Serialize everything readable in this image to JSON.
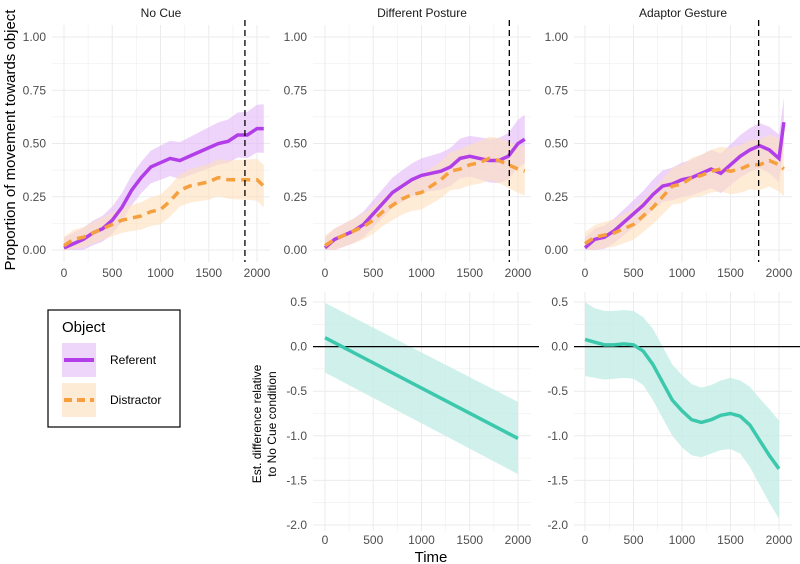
{
  "chart_data": [
    {
      "type": "line",
      "title": "No Cue",
      "xlim": [
        0,
        2080
      ],
      "ylim": [
        0,
        1
      ],
      "yticks": [
        "0.00",
        "0.25",
        "0.50",
        "0.75",
        "1.00"
      ],
      "xticks": [
        "0",
        "500",
        "1000",
        "1500",
        "2000"
      ],
      "vline": 1875,
      "x": [
        0,
        100,
        200,
        300,
        400,
        500,
        600,
        700,
        800,
        900,
        1000,
        1100,
        1200,
        1300,
        1400,
        1500,
        1600,
        1700,
        1800,
        1900,
        2000,
        2070
      ],
      "series": [
        {
          "name": "Referent",
          "values": [
            0.01,
            0.03,
            0.05,
            0.08,
            0.1,
            0.14,
            0.2,
            0.28,
            0.34,
            0.39,
            0.41,
            0.43,
            0.42,
            0.44,
            0.46,
            0.48,
            0.5,
            0.51,
            0.54,
            0.54,
            0.57,
            0.57
          ],
          "ci": 0.08
        },
        {
          "name": "Distractor",
          "values": [
            0.02,
            0.05,
            0.06,
            0.08,
            0.1,
            0.12,
            0.14,
            0.15,
            0.16,
            0.18,
            0.19,
            0.23,
            0.28,
            0.3,
            0.31,
            0.32,
            0.34,
            0.33,
            0.33,
            0.33,
            0.33,
            0.3
          ],
          "ci": 0.07
        }
      ]
    },
    {
      "type": "line",
      "title": "Different Posture",
      "xlim": [
        0,
        2080
      ],
      "ylim": [
        0,
        1
      ],
      "yticks": [
        "0.00",
        "0.25",
        "0.50",
        "0.75",
        "1.00"
      ],
      "xticks": [
        "0",
        "500",
        "1000",
        "1500",
        "2000"
      ],
      "vline": 1910,
      "x": [
        0,
        100,
        200,
        300,
        400,
        500,
        600,
        700,
        800,
        900,
        1000,
        1100,
        1200,
        1300,
        1400,
        1500,
        1600,
        1700,
        1800,
        1900,
        2000,
        2070
      ],
      "series": [
        {
          "name": "Referent",
          "values": [
            0.01,
            0.05,
            0.07,
            0.09,
            0.12,
            0.17,
            0.22,
            0.27,
            0.3,
            0.33,
            0.35,
            0.36,
            0.37,
            0.39,
            0.43,
            0.44,
            0.43,
            0.42,
            0.42,
            0.44,
            0.5,
            0.52
          ],
          "ci": 0.08
        },
        {
          "name": "Distractor",
          "values": [
            0.02,
            0.05,
            0.07,
            0.09,
            0.11,
            0.14,
            0.18,
            0.21,
            0.24,
            0.26,
            0.27,
            0.3,
            0.33,
            0.37,
            0.38,
            0.4,
            0.41,
            0.43,
            0.42,
            0.4,
            0.38,
            0.37
          ],
          "ci": 0.08
        }
      ]
    },
    {
      "type": "line",
      "title": "Adaptor Gesture",
      "xlim": [
        0,
        2080
      ],
      "ylim": [
        0,
        1
      ],
      "yticks": [
        "0.00",
        "0.25",
        "0.50",
        "0.75",
        "1.00"
      ],
      "xticks": [
        "0",
        "500",
        "1000",
        "1500",
        "2000"
      ],
      "vline": 1790,
      "x": [
        0,
        100,
        200,
        300,
        400,
        500,
        600,
        700,
        800,
        900,
        1000,
        1100,
        1200,
        1300,
        1400,
        1500,
        1600,
        1700,
        1800,
        1900,
        2000,
        2050
      ],
      "series": [
        {
          "name": "Referent",
          "values": [
            0.01,
            0.05,
            0.06,
            0.09,
            0.13,
            0.17,
            0.21,
            0.26,
            0.3,
            0.31,
            0.33,
            0.34,
            0.36,
            0.38,
            0.36,
            0.4,
            0.44,
            0.47,
            0.49,
            0.47,
            0.43,
            0.6
          ],
          "ci": 0.08
        },
        {
          "name": "Distractor",
          "values": [
            0.03,
            0.06,
            0.07,
            0.08,
            0.1,
            0.12,
            0.16,
            0.2,
            0.25,
            0.3,
            0.31,
            0.34,
            0.35,
            0.37,
            0.38,
            0.37,
            0.38,
            0.4,
            0.4,
            0.42,
            0.4,
            0.38
          ],
          "ci": 0.09
        }
      ]
    },
    {
      "type": "line",
      "panel": "Different Posture difference",
      "xlim": [
        0,
        2080
      ],
      "ylim": [
        -2,
        0.5
      ],
      "yticks": [
        "-2.0",
        "-1.5",
        "-1.0",
        "-0.5",
        "0.0",
        "0.5"
      ],
      "xticks": [
        "0",
        "500",
        "1000",
        "1500",
        "2000"
      ],
      "x": [
        0,
        2000
      ],
      "values": [
        0.1,
        -1.03
      ],
      "lower": [
        -0.29,
        -1.43
      ],
      "upper": [
        0.49,
        -0.62
      ]
    },
    {
      "type": "line",
      "panel": "Adaptor Gesture difference",
      "xlim": [
        0,
        2080
      ],
      "ylim": [
        -2,
        0.5
      ],
      "yticks": [
        "-2.0",
        "-1.5",
        "-1.0",
        "-0.5",
        "0.0",
        "0.5"
      ],
      "xticks": [
        "0",
        "500",
        "1000",
        "1500",
        "2000"
      ],
      "x": [
        0,
        100,
        200,
        300,
        400,
        500,
        600,
        700,
        800,
        900,
        1000,
        1100,
        1200,
        1300,
        1400,
        1500,
        1600,
        1700,
        1800,
        1900,
        2000
      ],
      "values": [
        0.08,
        0.05,
        0.02,
        0.02,
        0.03,
        0.02,
        -0.05,
        -0.2,
        -0.4,
        -0.6,
        -0.72,
        -0.82,
        -0.85,
        -0.82,
        -0.77,
        -0.75,
        -0.78,
        -0.88,
        -1.05,
        -1.22,
        -1.37
      ],
      "lower": [
        -0.33,
        -0.35,
        -0.37,
        -0.36,
        -0.35,
        -0.36,
        -0.43,
        -0.6,
        -0.8,
        -1.0,
        -1.13,
        -1.22,
        -1.24,
        -1.2,
        -1.16,
        -1.15,
        -1.2,
        -1.35,
        -1.55,
        -1.75,
        -1.93
      ],
      "upper": [
        0.5,
        0.43,
        0.4,
        0.4,
        0.41,
        0.4,
        0.33,
        0.2,
        0.0,
        -0.2,
        -0.32,
        -0.42,
        -0.46,
        -0.43,
        -0.38,
        -0.35,
        -0.38,
        -0.45,
        -0.58,
        -0.7,
        -0.83
      ]
    }
  ],
  "labels": {
    "y_top": "Proportion of movement towards object",
    "y_bottom_1": "Est. difference relative",
    "y_bottom_2": "to No Cue condition",
    "x_bottom": "Time"
  },
  "legend": {
    "title": "Object",
    "items": [
      "Referent",
      "Distractor"
    ]
  },
  "colors": {
    "referent": "#b23ee8",
    "distractor": "#f5a03c",
    "diff": "#3cc8ad"
  }
}
